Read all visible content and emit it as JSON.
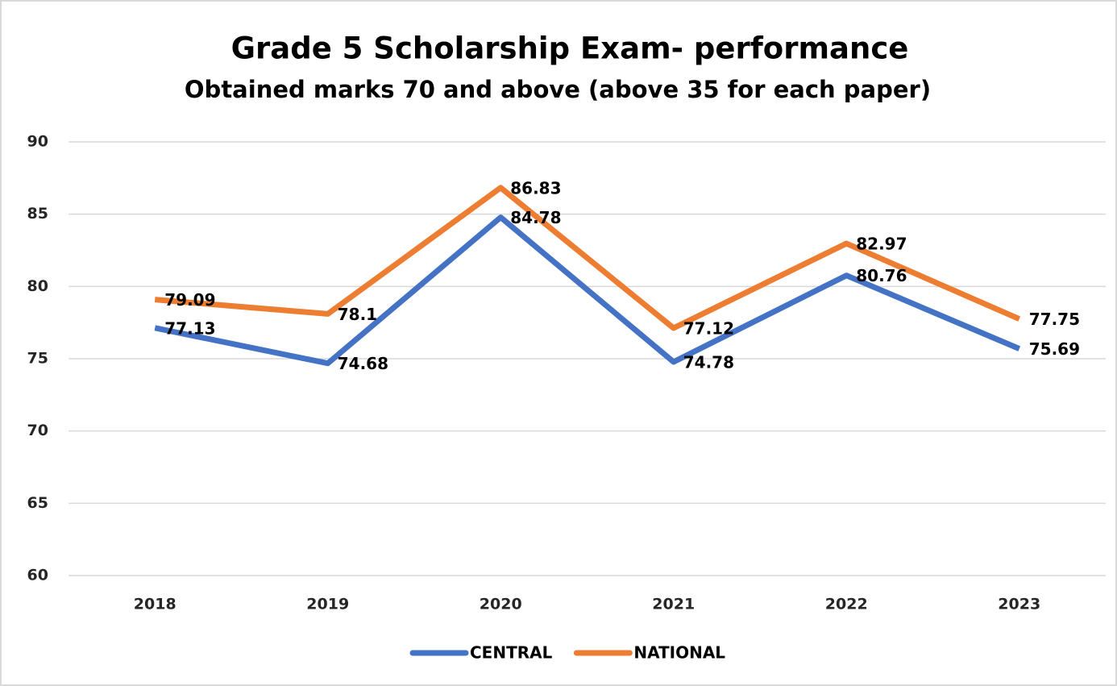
{
  "chart_data": {
    "type": "line",
    "title": "Grade 5 Scholarship Exam- performance",
    "subtitle": "Obtained marks 70 and above (above 35 for each paper)",
    "categories": [
      "2018",
      "2019",
      "2020",
      "2021",
      "2022",
      "2023"
    ],
    "series": [
      {
        "name": "CENTRAL",
        "color": "#4472c4",
        "values": [
          77.13,
          74.68,
          84.78,
          74.78,
          80.76,
          75.69
        ]
      },
      {
        "name": "NATIONAL",
        "color": "#ed7d31",
        "values": [
          79.09,
          78.1,
          86.83,
          77.12,
          82.97,
          77.75
        ]
      }
    ],
    "ylim": [
      60,
      90
    ],
    "yticks": [
      60,
      65,
      70,
      75,
      80,
      85,
      90
    ],
    "grid": true,
    "legend": "bottom"
  }
}
